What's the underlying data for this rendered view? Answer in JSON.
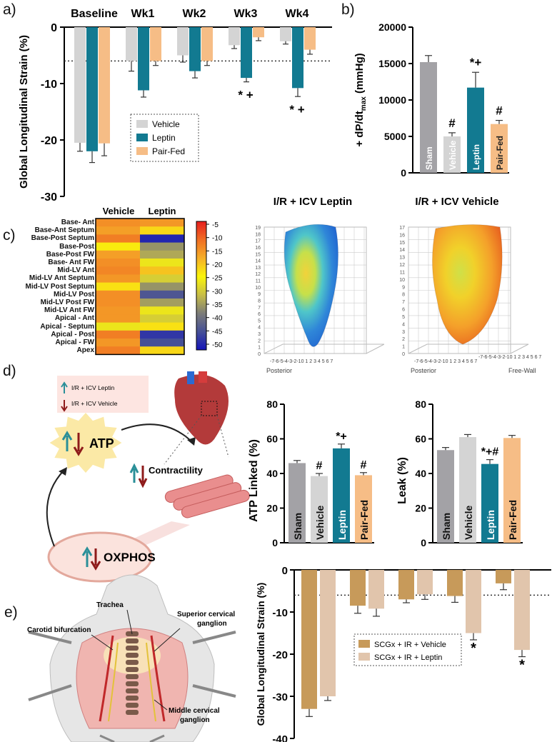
{
  "panels": {
    "a": "a)",
    "b": "b)",
    "c": "c)",
    "d": "d)",
    "e": "e)"
  },
  "colors": {
    "vehicle": "#d4d4d4",
    "leptin": "#127a91",
    "pairfed": "#f6bd86",
    "sham": "#a3a2a6",
    "scgx_vehicle": "#c79a5a",
    "scgx_leptin": "#e1c5ac"
  },
  "chart_data": [
    {
      "id": "a",
      "type": "bar",
      "title": "",
      "categories": [
        "Baseline",
        "Wk1",
        "Wk2",
        "Wk3",
        "Wk4"
      ],
      "series": [
        {
          "name": "Vehicle",
          "values": [
            -20.5,
            -6.0,
            -5.0,
            -3.2,
            -2.5
          ],
          "errors": [
            1.5,
            1.8,
            1.2,
            0.6,
            0.5
          ]
        },
        {
          "name": "Leptin",
          "values": [
            -22.0,
            -11.2,
            -7.8,
            -9.0,
            -10.8
          ],
          "errors": [
            2.0,
            1.2,
            1.2,
            0.7,
            1.5
          ]
        },
        {
          "name": "Pair-Fed",
          "values": [
            -20.6,
            -6.0,
            -6.0,
            -1.8,
            -4.0
          ],
          "errors": [
            2.2,
            0.8,
            0.8,
            0.6,
            0.8
          ]
        }
      ],
      "annotations": {
        "Wk3": "* +",
        "Wk4": "* +"
      },
      "ylabel": "Global Longitudinal Strain (%)",
      "ylim": [
        -30,
        0
      ],
      "yticks": [
        "0",
        "-10",
        "-20",
        "-30"
      ],
      "reference_line": -6,
      "legend": "inside-right"
    },
    {
      "id": "b",
      "type": "bar",
      "categories": [
        "Sham",
        "Vehicle",
        "Leptin",
        "Pair-Fed"
      ],
      "values": [
        15200,
        5000,
        11700,
        6700
      ],
      "errors": [
        900,
        500,
        2100,
        500
      ],
      "annotations": [
        "",
        "#",
        "*+",
        "#"
      ],
      "ylabel_main": "+ dP/dt",
      "ylabel_sub": "max",
      "ylabel_unit": " (mmHg)",
      "ylim": [
        0,
        20000
      ],
      "yticks": [
        "0",
        "5000",
        "10000",
        "15000",
        "20000"
      ]
    },
    {
      "id": "c",
      "type": "heatmap",
      "columns": [
        "Vehicle",
        "Leptin"
      ],
      "rows": [
        "Base- Ant",
        "Base-Ant Septum",
        "Base-Post Septum",
        "Base-Post",
        "Base-Post FW",
        "Base- Ant FW",
        "Mid-LV Ant",
        "Mid-LV Ant Septum",
        "Mid-LV Post Septum",
        "Mid-LV Post",
        "Mid-LV Post FW",
        "Mid-LV Ant FW",
        "Apical - Ant",
        "Apical - Septum",
        "Apical - Post",
        "Apical - FW",
        "Apex"
      ],
      "values": [
        [
          -14,
          -15
        ],
        [
          -16,
          -22
        ],
        [
          -12,
          -50
        ],
        [
          -24,
          -36
        ],
        [
          -16,
          -34
        ],
        [
          -14,
          -27
        ],
        [
          -13,
          -20
        ],
        [
          -15,
          -30
        ],
        [
          -23,
          -36
        ],
        [
          -14,
          -44
        ],
        [
          -14,
          -35
        ],
        [
          -15,
          -27
        ],
        [
          -15,
          -30
        ],
        [
          -27,
          -23
        ],
        [
          -12,
          -48
        ],
        [
          -15,
          -45
        ],
        [
          -12,
          -22
        ]
      ],
      "colorbar_ticks": [
        "-5",
        "-10",
        "-15",
        "-20",
        "-25",
        "-30",
        "-35",
        "-40",
        "-45",
        "-50"
      ],
      "range": [
        -52,
        -3
      ]
    },
    {
      "id": "d1",
      "type": "bar",
      "categories": [
        "Sham",
        "Vehicle",
        "Leptin",
        "Pair-Fed"
      ],
      "values": [
        46,
        38.5,
        54.5,
        39
      ],
      "errors": [
        1.5,
        1.5,
        2.5,
        1.5
      ],
      "annotations": [
        "",
        "#",
        "*+",
        "#"
      ],
      "ylabel": "ATP Linked (%)",
      "ylim": [
        0,
        80
      ],
      "yticks": [
        "0",
        "20",
        "40",
        "60",
        "80"
      ]
    },
    {
      "id": "d2",
      "type": "bar",
      "categories": [
        "Sham",
        "Vehicle",
        "Leptin",
        "Pair-Fed"
      ],
      "values": [
        53.5,
        61,
        45.5,
        60.5
      ],
      "errors": [
        1.5,
        1.5,
        2.5,
        1.5
      ],
      "annotations": [
        "",
        "",
        "*+#",
        ""
      ],
      "ylabel": "Leak (%)",
      "ylim": [
        0,
        80
      ],
      "yticks": [
        "0",
        "20",
        "40",
        "60",
        "80"
      ]
    },
    {
      "id": "e",
      "type": "bar",
      "categories": [
        "",
        "",
        "",
        "",
        ""
      ],
      "series": [
        {
          "name": "SCGx + IR + Vehicle",
          "values": [
            -33,
            -8.5,
            -7,
            -6.2,
            -3.2
          ],
          "errors": [
            1.8,
            1.8,
            0.8,
            1.5,
            1.5
          ]
        },
        {
          "name": "SCGx + IR + Leptin",
          "values": [
            -30,
            -9.2,
            -5.8,
            -15,
            -19
          ],
          "errors": [
            1.0,
            1.8,
            1.2,
            1.6,
            1.6
          ]
        }
      ],
      "annotations": [
        "",
        "",
        "",
        "*",
        "*"
      ],
      "ylabel": "Global Longitudinal Strain (%)",
      "ylim": [
        -40,
        0
      ],
      "yticks": [
        "0",
        "-10",
        "-20",
        "-30",
        "-40"
      ],
      "reference_line": -6,
      "legend": "center-right"
    }
  ],
  "heart3d": {
    "leptin_title": "I/R + ICV Leptin",
    "vehicle_title": "I/R + ICV Vehicle",
    "axis_posterior": "Posterior",
    "axis_freewall": "Free-Wall",
    "leptin_zticks": [
      "0",
      "1",
      "2",
      "3",
      "4",
      "5",
      "6",
      "7",
      "8",
      "9",
      "10",
      "11",
      "12",
      "13",
      "14",
      "15",
      "16",
      "17",
      "18",
      "19"
    ],
    "vehicle_zticks": [
      "0",
      "1",
      "2",
      "3",
      "4",
      "5",
      "6",
      "7",
      "8",
      "9",
      "10",
      "11",
      "12",
      "13",
      "14",
      "15",
      "16",
      "17"
    ],
    "xticks_leptin": "-7-6-5-4-3-2-10 1 2 3 4 5 6 7",
    "xticks_vehicle": "-7-6-5-4-3-2-10 1 2 3 4 5 6 7",
    "yticks_vehicle": "-7-6-5-4-3-2-10 1 2 3 4 5 6 7"
  },
  "diagram_d": {
    "legend_up": "I/R + ICV Leptin",
    "legend_down": "I/R + ICV Vehicle",
    "atp": "ATP",
    "contractility": "Contractility",
    "oxphos": "OXPHOS"
  },
  "diagram_e": {
    "trachea": "Trachea",
    "carotid": "Carotid bifurcation",
    "superior": "Superior cervical ganglion",
    "middle": "Middle cervical ganglion"
  }
}
